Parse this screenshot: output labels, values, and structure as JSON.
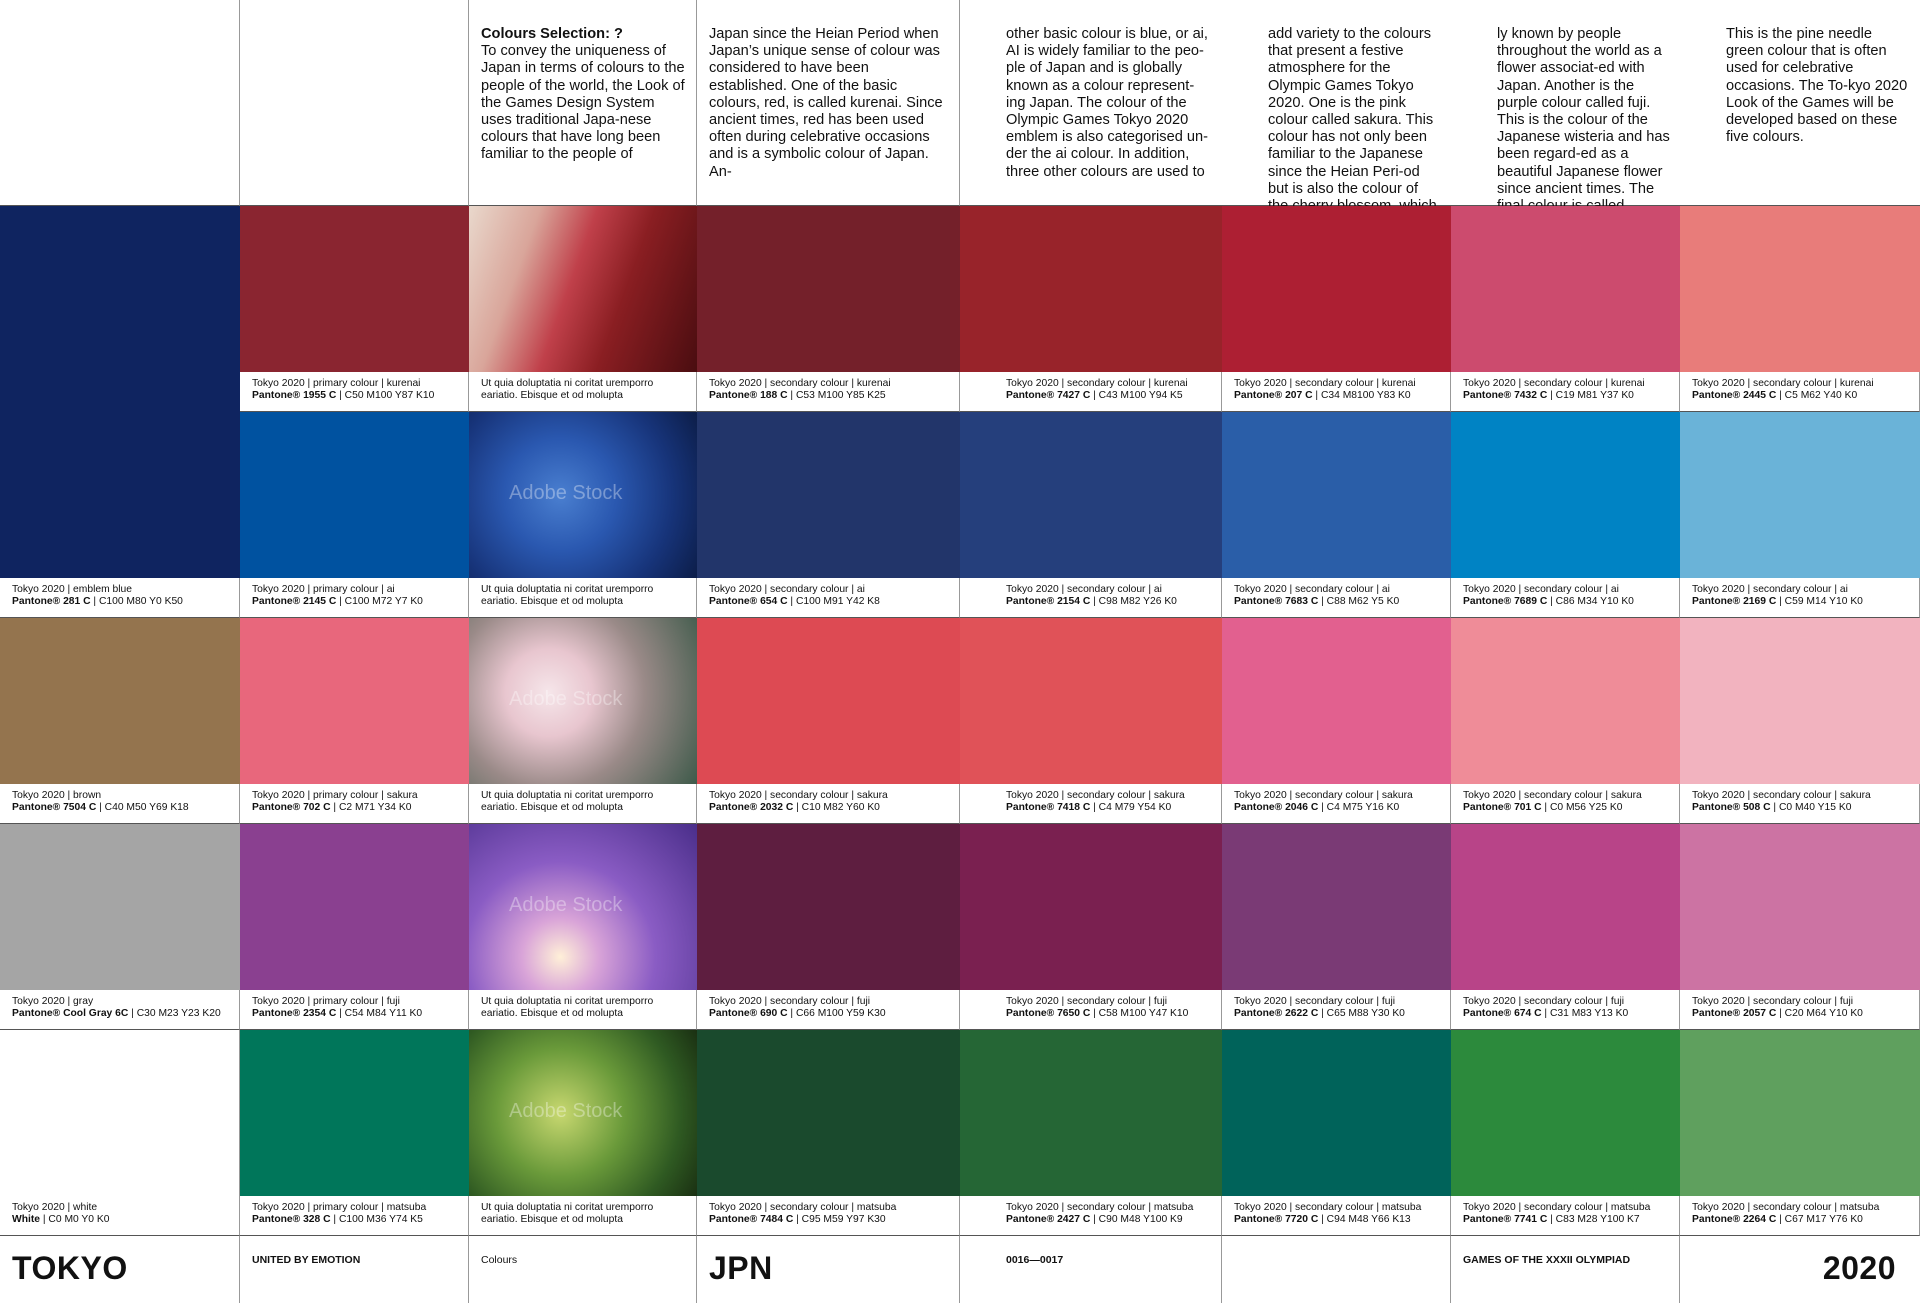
{
  "header": {
    "title": "Colours Selection: ?",
    "columns": [
      "To convey the uniqueness of Japan in terms of colours to the people of the world, the Look of the Games Design System uses traditional Japa-nese colours that have long been familiar to the people of",
      "Japan since the Heian Period when Japan’s unique sense of colour was considered to have been established. One of the basic colours, red, is called kurenai. Since ancient times, red has been used often during celebrative occasions and is a symbolic colour of Japan. An-",
      "other basic colour is blue, or ai, AI is widely familiar to the peo-ple of Japan and is globally known as a colour represent-ing Japan. The colour of the Olympic Games Tokyo 2020 emblem is also categorised un-der the ai colour. In addition, three other colours are used to",
      "add variety to the colours that present a festive atmosphere for the Olympic Games Tokyo 2020. One is the pink colour called sakura. This colour has not only been familiar to the Japanese since the Heian Peri-od but is also the colour of the cherry blossom, which is wide-",
      "ly known by people throughout the world as a flower associat-ed with Japan. Another is the purple colour called fuji. This is the colour of the Japanese wisteria and has been regard-ed as a beautiful Japanese flower since ancient times. The final colour is called matsuba.",
      "This is the pine needle green colour that is often used for celebrative occasions. The To-kyo 2020 Look of the Games will be developed based on these five colours."
    ]
  },
  "photo_caption": "Ut quia doluptatia ni coritat uremporro eariatio. Ebisque et od molupta",
  "watermark": "Adobe Stock",
  "rows": [
    {
      "group": "kurenai",
      "photo": "red-fabric",
      "cells": [
        null,
        {
          "color": "#8a2530",
          "line1": "Tokyo 2020 | primary colour | kurenai",
          "pantone": "Pantone® 1955 C",
          "cmyk": " | C50 M100 Y87 K10"
        },
        {
          "color": "#74202a",
          "line1": "Tokyo 2020 | secondary colour | kurenai",
          "pantone": "Pantone® 188 C",
          "cmyk": " | C53 M100 Y85 K25"
        },
        {
          "color": "#98232a",
          "line1": "Tokyo 2020 | secondary colour | kurenai",
          "pantone": "Pantone® 7427 C",
          "cmyk": " | C43 M100 Y94 K5"
        },
        {
          "color": "#ad1f33",
          "line1": "Tokyo 2020 | secondary colour | kurenai",
          "pantone": "Pantone® 207 C",
          "cmyk": " | C34 M8100 Y83 K0"
        },
        {
          "color": "#cc4b6e",
          "line1": "Tokyo 2020 | secondary colour | kurenai",
          "pantone": "Pantone® 7432 C",
          "cmyk": " | C19 M81 Y37 K0"
        },
        {
          "color": "#e87c7a",
          "line1": "Tokyo 2020 | secondary colour | kurenai",
          "pantone": "Pantone® 2445 C",
          "cmyk": " | C5 M62 Y40 K0"
        }
      ]
    },
    {
      "group": "ai",
      "photo": "blue-yarn",
      "cells": [
        {
          "color": "#0f2460",
          "line1": "Tokyo 2020 | emblem blue",
          "pantone": "Pantone® 281 C",
          "cmyk": " | C100 M80 Y0 K50"
        },
        {
          "color": "#0052a0",
          "line1": "Tokyo 2020 | primary colour | ai",
          "pantone": "Pantone® 2145 C",
          "cmyk": " | C100 M72 Y7 K0"
        },
        {
          "color": "#22356a",
          "line1": "Tokyo 2020 | secondary colour | ai",
          "pantone": "Pantone® 654 C",
          "cmyk": " | C100 M91 Y42 K8"
        },
        {
          "color": "#253f7c",
          "line1": "Tokyo 2020 | secondary colour | ai",
          "pantone": "Pantone® 2154 C",
          "cmyk": " | C98 M82 Y26 K0"
        },
        {
          "color": "#2a5ea8",
          "line1": "Tokyo 2020 | secondary colour | ai",
          "pantone": "Pantone® 7683 C",
          "cmyk": " | C88 M62 Y5 K0"
        },
        {
          "color": "#0083c4",
          "line1": "Tokyo 2020 | secondary colour | ai",
          "pantone": "Pantone® 7689 C",
          "cmyk": " | C86 M34 Y10 K0"
        },
        {
          "color": "#6ab3d8",
          "line1": "Tokyo 2020 | secondary colour | ai",
          "pantone": "Pantone® 2169 C",
          "cmyk": " | C59 M14 Y10 K0"
        }
      ]
    },
    {
      "group": "sakura",
      "photo": "cherry-blossom",
      "cells": [
        {
          "color": "#94744e",
          "line1": "Tokyo 2020 | brown",
          "pantone": "Pantone® 7504 C",
          "cmyk": " | C40 M50 Y69 K18"
        },
        {
          "color": "#e8677c",
          "line1": "Tokyo 2020 | primary colour | sakura",
          "pantone": "Pantone® 702 C",
          "cmyk": " | C2 M71 Y34 K0"
        },
        {
          "color": "#dd4a53",
          "line1": "Tokyo 2020 | secondary colour | sakura",
          "pantone": "Pantone® 2032 C",
          "cmyk": " | C10 M82 Y60 K0"
        },
        {
          "color": "#e05258",
          "line1": "Tokyo 2020 | secondary colour | sakura",
          "pantone": "Pantone® 7418 C",
          "cmyk": " | C4 M79 Y54 K0"
        },
        {
          "color": "#e2608f",
          "line1": "Tokyo 2020 | secondary colour | sakura",
          "pantone": "Pantone® 2046 C",
          "cmyk": " | C4 M75 Y16 K0"
        },
        {
          "color": "#ef8c98",
          "line1": "Tokyo 2020 | secondary colour | sakura",
          "pantone": "Pantone® 701 C",
          "cmyk": " | C0 M56 Y25 K0"
        },
        {
          "color": "#f2b3bf",
          "line1": "Tokyo 2020 | secondary colour | sakura",
          "pantone": "Pantone® 508 C",
          "cmyk": " | C0 M40 Y15 K0"
        }
      ]
    },
    {
      "group": "fuji",
      "photo": "wisteria",
      "cells": [
        {
          "color": "#a5a5a5",
          "line1": "Tokyo 2020 | gray",
          "pantone": "Pantone® Cool Gray 6C",
          "cmyk": " | C30 M23 Y23 K20"
        },
        {
          "color": "#8a4090",
          "line1": "Tokyo 2020 | primary colour | fuji",
          "pantone": "Pantone® 2354 C",
          "cmyk": " | C54 M84 Y11 K0"
        },
        {
          "color": "#5e1e40",
          "line1": "Tokyo 2020 | secondary colour | fuji",
          "pantone": "Pantone® 690 C",
          "cmyk": " | C66 M100 Y59 K30"
        },
        {
          "color": "#7a2050",
          "line1": "Tokyo 2020 | secondary colour | fuji",
          "pantone": "Pantone® 7650 C",
          "cmyk": " | C58 M100 Y47 K10"
        },
        {
          "color": "#7a3a75",
          "line1": "Tokyo 2020 | secondary colour | fuji",
          "pantone": "Pantone® 2622 C",
          "cmyk": " | C65 M88 Y30 K0"
        },
        {
          "color": "#b84488",
          "line1": "Tokyo 2020 | secondary colour | fuji",
          "pantone": "Pantone® 674 C",
          "cmyk": " | C31 M83 Y13 K0"
        },
        {
          "color": "#cc73a3",
          "line1": "Tokyo 2020 | secondary colour | fuji",
          "pantone": "Pantone® 2057 C",
          "cmyk": " | C20 M64 Y10 K0"
        }
      ]
    },
    {
      "group": "matsuba",
      "photo": "pine-needles",
      "cells": [
        {
          "color": "#ffffff",
          "line1": "Tokyo 2020 | white",
          "pantone": "White",
          "cmyk": " | C0 M0 Y0 K0"
        },
        {
          "color": "#00765a",
          "line1": "Tokyo 2020 | primary colour | matsuba",
          "pantone": "Pantone® 328 C",
          "cmyk": " | C100 M36 Y74 K5"
        },
        {
          "color": "#1a4a2d",
          "line1": "Tokyo 2020 | secondary colour | matsuba",
          "pantone": "Pantone® 7484 C",
          "cmyk": " | C95 M59 Y97 K30"
        },
        {
          "color": "#256635",
          "line1": "Tokyo 2020 | secondary colour | matsuba",
          "pantone": "Pantone® 2427 C",
          "cmyk": " | C90 M48 Y100 K9"
        },
        {
          "color": "#00635a",
          "line1": "Tokyo 2020 | secondary colour | matsuba",
          "pantone": "Pantone® 7720 C",
          "cmyk": " | C94 M48 Y66 K13"
        },
        {
          "color": "#2c8a3c",
          "line1": "Tokyo 2020 | secondary colour | matsuba",
          "pantone": "Pantone® 7741 C",
          "cmyk": " | C83 M28 Y100 K7"
        },
        {
          "color": "#5fa05e",
          "line1": "Tokyo 2020 | secondary colour | matsuba",
          "pantone": "Pantone® 2264 C",
          "cmyk": " | C67 M17 Y76 K0"
        }
      ]
    }
  ],
  "footer": {
    "tokyo": "TOKYO",
    "slogan": "UNITED BY EMOTION",
    "section": "Colours",
    "country": "JPN",
    "pages": "0016—0017",
    "empty": "",
    "games": "GAMES OF THE XXXII OLYMPIAD",
    "year": "2020"
  }
}
